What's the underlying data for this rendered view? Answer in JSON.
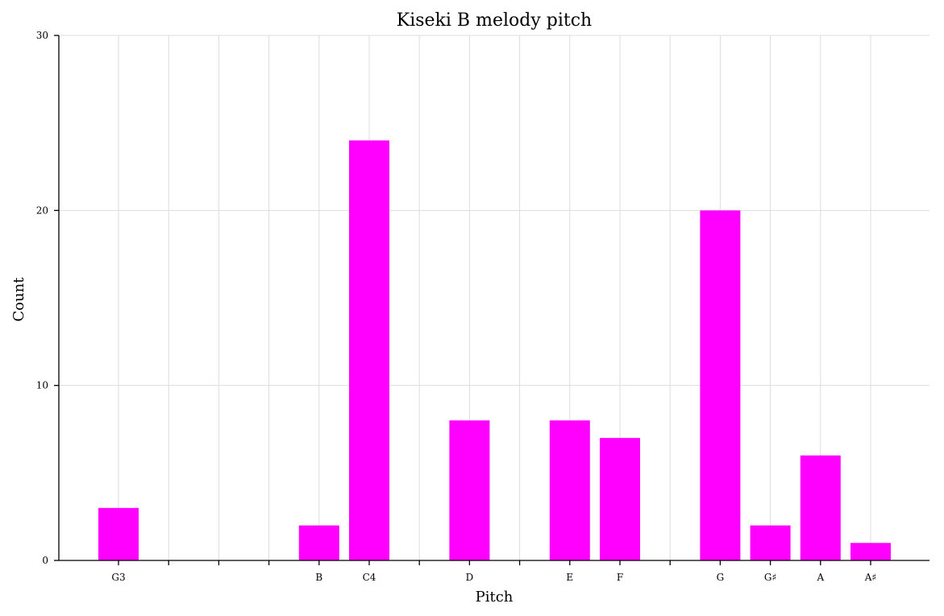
{
  "chart_data": {
    "type": "bar",
    "title": "Kiseki B melody pitch",
    "xlabel": "Pitch",
    "ylabel": "Count",
    "categories": [
      "G3",
      "",
      "",
      "",
      "B",
      "C4",
      "",
      "D",
      "",
      "E",
      "F",
      "",
      "G",
      "G♯",
      "A",
      "A♯"
    ],
    "values": [
      3,
      0,
      0,
      0,
      2,
      24,
      0,
      8,
      0,
      8,
      7,
      0,
      20,
      2,
      6,
      1
    ],
    "ylim": [
      0,
      30
    ],
    "yticks": [
      0,
      10,
      20,
      30
    ],
    "grid": true,
    "colors": {
      "bar": "#ff00ff"
    }
  }
}
